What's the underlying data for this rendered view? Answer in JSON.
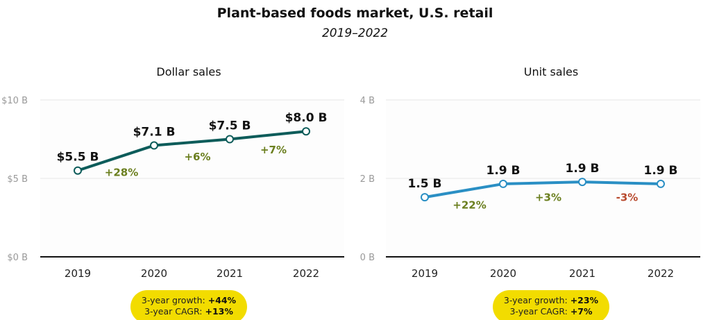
{
  "title": "Plant-based foods market, U.S. retail",
  "subtitle": "2019–2022",
  "colors": {
    "dollar_line": "#0d5c5a",
    "unit_line": "#2a8fc4",
    "positive": "#6b7f1f",
    "negative": "#b84a2e",
    "pill": "#f2dc00"
  },
  "chart_data": [
    {
      "type": "line",
      "title": "Dollar sales",
      "categories": [
        "2019",
        "2020",
        "2021",
        "2022"
      ],
      "values": [
        5.5,
        7.1,
        7.5,
        8.0
      ],
      "data_labels": [
        "$5.5 B",
        "$7.1 B",
        "$7.5 B",
        "$8.0 B"
      ],
      "change_labels": [
        "+28%",
        "+6%",
        "+7%"
      ],
      "ylim": [
        0,
        10
      ],
      "yticks": [
        0,
        5,
        10
      ],
      "ytick_labels": [
        "$0 B",
        "$5 B",
        "$10 B"
      ],
      "grid": true,
      "summary": {
        "growth_label": "3-year growth:",
        "growth_value": "+44%",
        "cagr_label": "3-year CAGR:",
        "cagr_value": "+13%"
      }
    },
    {
      "type": "line",
      "title": "Unit sales",
      "categories": [
        "2019",
        "2020",
        "2021",
        "2022"
      ],
      "values": [
        1.52,
        1.86,
        1.91,
        1.86
      ],
      "data_labels": [
        "1.5 B",
        "1.9 B",
        "1.9 B",
        "1.9 B"
      ],
      "change_labels": [
        "+22%",
        "+3%",
        "-3%"
      ],
      "ylim": [
        0,
        4
      ],
      "yticks": [
        0,
        2,
        4
      ],
      "ytick_labels": [
        "0 B",
        "2 B",
        "4 B"
      ],
      "grid": true,
      "summary": {
        "growth_label": "3-year growth:",
        "growth_value": "+23%",
        "cagr_label": "3-year CAGR:",
        "cagr_value": "+7%"
      }
    }
  ]
}
